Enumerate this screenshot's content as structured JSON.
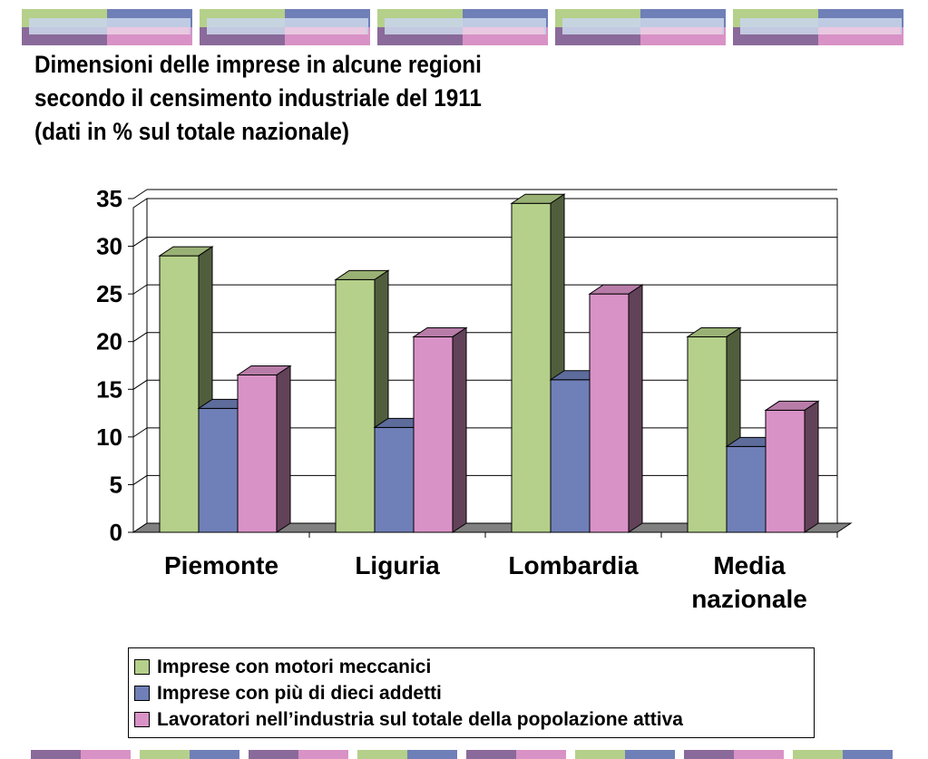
{
  "title_lines": [
    "Dimensioni delle imprese in alcune regioni",
    "secondo il censimento industriale del 1911",
    "(dati in % sul totale nazionale)"
  ],
  "colors": {
    "green": "#b5d08a",
    "blue": "#6f7fb8",
    "pink": "#d992c6",
    "purple": "#8a6a9a",
    "lightblue": "#c8d4e8",
    "lightpink": "#f0c8e0"
  },
  "legend": [
    {
      "label": "Imprese con motori meccanici",
      "color": "#b5d08a"
    },
    {
      "label": "Imprese con più di dieci addetti",
      "color": "#6f7fb8"
    },
    {
      "label": "Lavoratori nell’industria sul totale della popolazione attiva",
      "color": "#d992c6"
    }
  ],
  "chart_data": {
    "type": "bar",
    "categories": [
      [
        "Piemonte"
      ],
      [
        "Liguria"
      ],
      [
        "Lombardia"
      ],
      [
        "Media",
        "nazionale"
      ]
    ],
    "series": [
      {
        "name": "Imprese con motori meccanici",
        "values": [
          29,
          26.5,
          34.5,
          20.5
        ],
        "color": "#b5d08a"
      },
      {
        "name": "Imprese con più di dieci addetti",
        "values": [
          13,
          11,
          16,
          9
        ],
        "color": "#6f7fb8"
      },
      {
        "name": "Lavoratori nell’industria sul totale della popolazione attiva",
        "values": [
          16.5,
          20.5,
          25,
          12.8
        ],
        "color": "#d992c6"
      }
    ],
    "ylim": [
      0,
      35
    ],
    "yticks": [
      0,
      5,
      10,
      15,
      20,
      25,
      30,
      35
    ],
    "grid": true,
    "legend_position": "bottom"
  }
}
